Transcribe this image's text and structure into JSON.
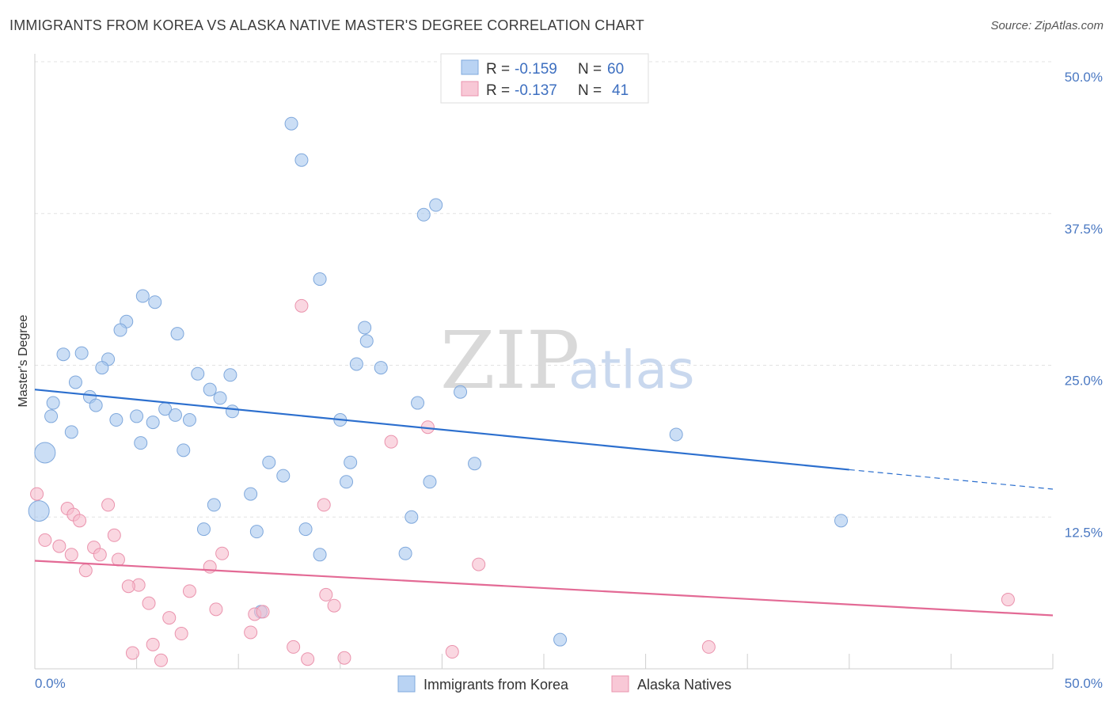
{
  "title": "IMMIGRANTS FROM KOREA VS ALASKA NATIVE MASTER'S DEGREE CORRELATION CHART",
  "source": "Source: ZipAtlas.com",
  "watermark": {
    "zip": "ZIP",
    "atlas": "atlas"
  },
  "chart_data": {
    "type": "scatter",
    "title": "IMMIGRANTS FROM KOREA VS ALASKA NATIVE MASTER'S DEGREE CORRELATION CHART",
    "xlabel": "",
    "ylabel": "Master's Degree",
    "xlim": [
      0,
      50
    ],
    "ylim": [
      0,
      50
    ],
    "x_tick_labels": [
      "0.0%",
      "50.0%"
    ],
    "y_ticks": [
      {
        "value": 12.5,
        "label": "12.5%"
      },
      {
        "value": 25.0,
        "label": "25.0%"
      },
      {
        "value": 37.5,
        "label": "37.5%"
      },
      {
        "value": 50.0,
        "label": "50.0%"
      }
    ],
    "grid": true,
    "legend": {
      "placement": "top-center",
      "entries": [
        {
          "r_label": "R =",
          "r_value": "-0.159",
          "n_label": "N =",
          "n_value": "60"
        },
        {
          "r_label": "R =",
          "r_value": "-0.137",
          "n_label": "N =",
          "n_value": "41"
        }
      ]
    },
    "series": [
      {
        "name": "Immigrants from Korea",
        "color": "#a9c8ef",
        "stroke": "#7fa8dc",
        "line_color": "#2c6fce",
        "trend": {
          "x0": 0,
          "y0": 23.0,
          "x1": 40,
          "y1": 16.4,
          "dash_to_x": 50,
          "dash_to_y": 14.8
        },
        "points": [
          [
            12.6,
            44.9
          ],
          [
            13.1,
            41.9
          ],
          [
            19.1,
            37.4
          ],
          [
            19.7,
            38.2
          ],
          [
            14.0,
            32.1
          ],
          [
            5.3,
            30.7
          ],
          [
            5.9,
            30.2
          ],
          [
            4.5,
            28.6
          ],
          [
            4.2,
            27.9
          ],
          [
            7.0,
            27.6
          ],
          [
            16.2,
            28.1
          ],
          [
            16.3,
            27.0
          ],
          [
            1.4,
            25.9
          ],
          [
            2.3,
            26.0
          ],
          [
            3.6,
            25.5
          ],
          [
            3.3,
            24.8
          ],
          [
            15.8,
            25.1
          ],
          [
            17.0,
            24.8
          ],
          [
            8.0,
            24.3
          ],
          [
            9.6,
            24.2
          ],
          [
            2.0,
            23.6
          ],
          [
            8.6,
            23.0
          ],
          [
            2.7,
            22.4
          ],
          [
            9.1,
            22.3
          ],
          [
            0.9,
            21.9
          ],
          [
            3.0,
            21.7
          ],
          [
            18.8,
            21.9
          ],
          [
            20.9,
            22.8
          ],
          [
            6.4,
            21.4
          ],
          [
            9.7,
            21.2
          ],
          [
            0.8,
            20.8
          ],
          [
            4.0,
            20.5
          ],
          [
            5.0,
            20.8
          ],
          [
            5.8,
            20.3
          ],
          [
            6.9,
            20.9
          ],
          [
            7.6,
            20.5
          ],
          [
            15.0,
            20.5
          ],
          [
            1.8,
            19.5
          ],
          [
            5.2,
            18.6
          ],
          [
            7.3,
            18.0
          ],
          [
            0.5,
            17.8
          ],
          [
            31.5,
            19.3
          ],
          [
            11.5,
            17.0
          ],
          [
            15.5,
            17.0
          ],
          [
            21.6,
            16.9
          ],
          [
            12.2,
            15.9
          ],
          [
            15.3,
            15.4
          ],
          [
            19.4,
            15.4
          ],
          [
            10.6,
            14.4
          ],
          [
            8.8,
            13.5
          ],
          [
            0.2,
            13.0
          ],
          [
            18.5,
            12.5
          ],
          [
            39.6,
            12.2
          ],
          [
            8.3,
            11.5
          ],
          [
            10.9,
            11.3
          ],
          [
            13.3,
            11.5
          ],
          [
            14.0,
            9.4
          ],
          [
            18.2,
            9.5
          ],
          [
            11.1,
            4.7
          ],
          [
            25.8,
            2.4
          ]
        ]
      },
      {
        "name": "Alaska Natives",
        "color": "#f6bccd",
        "stroke": "#ea93ad",
        "line_color": "#e36a95",
        "trend": {
          "x0": 0,
          "y0": 8.9,
          "x1": 50,
          "y1": 4.4
        },
        "points": [
          [
            13.1,
            29.9
          ],
          [
            19.3,
            19.9
          ],
          [
            17.5,
            18.7
          ],
          [
            0.1,
            14.4
          ],
          [
            14.2,
            13.5
          ],
          [
            3.6,
            13.5
          ],
          [
            1.6,
            13.2
          ],
          [
            1.9,
            12.7
          ],
          [
            2.2,
            12.2
          ],
          [
            3.9,
            11.0
          ],
          [
            0.5,
            10.6
          ],
          [
            1.2,
            10.1
          ],
          [
            2.9,
            10.0
          ],
          [
            1.8,
            9.4
          ],
          [
            3.2,
            9.4
          ],
          [
            9.2,
            9.5
          ],
          [
            4.1,
            9.0
          ],
          [
            21.8,
            8.6
          ],
          [
            8.6,
            8.4
          ],
          [
            2.5,
            8.1
          ],
          [
            5.1,
            6.9
          ],
          [
            4.6,
            6.8
          ],
          [
            7.6,
            6.4
          ],
          [
            14.3,
            6.1
          ],
          [
            5.6,
            5.4
          ],
          [
            14.7,
            5.2
          ],
          [
            8.9,
            4.9
          ],
          [
            10.8,
            4.5
          ],
          [
            11.2,
            4.7
          ],
          [
            6.6,
            4.2
          ],
          [
            47.8,
            5.7
          ],
          [
            7.2,
            2.9
          ],
          [
            10.6,
            3.0
          ],
          [
            5.8,
            2.0
          ],
          [
            12.7,
            1.8
          ],
          [
            33.1,
            1.8
          ],
          [
            4.8,
            1.3
          ],
          [
            20.5,
            1.4
          ],
          [
            6.2,
            0.7
          ],
          [
            13.4,
            0.8
          ],
          [
            15.2,
            0.9
          ]
        ]
      }
    ]
  }
}
